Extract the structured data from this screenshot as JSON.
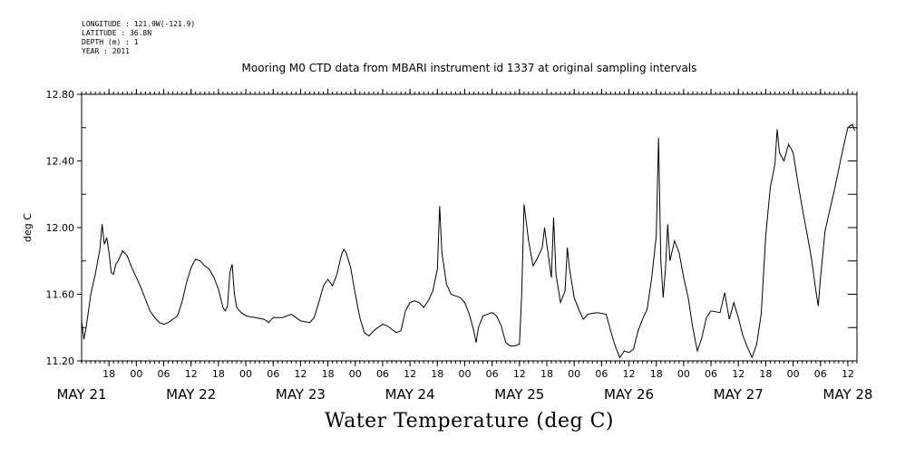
{
  "metadata": {
    "longitude": "LONGITUDE : 121.9W(-121.9)",
    "latitude": "LATITUDE : 36.8N",
    "depth": "DEPTH (m) : 1",
    "year": "YEAR : 2011"
  },
  "chart_data": {
    "type": "line",
    "title": "Mooring M0 CTD data from MBARI instrument id 1337 at original sampling intervals",
    "xlabel": "Water Temperature (deg C)",
    "ylabel": "deg C",
    "ylim": [
      11.2,
      12.8
    ],
    "y_ticks": [
      "11.20",
      "11.60",
      "12.00",
      "12.40",
      "12.80"
    ],
    "y_minor_ticks": [
      11.4,
      11.8,
      12.2,
      12.6
    ],
    "xlim": [
      "2011-05-21 12:00",
      "2011-05-28 14:00"
    ],
    "hour_ticks": [
      {
        "t": "2011-05-21 18:00",
        "label": "18"
      },
      {
        "t": "2011-05-22 00:00",
        "label": "00"
      },
      {
        "t": "2011-05-22 06:00",
        "label": "06"
      },
      {
        "t": "2011-05-22 12:00",
        "label": "12"
      },
      {
        "t": "2011-05-22 18:00",
        "label": "18"
      },
      {
        "t": "2011-05-23 00:00",
        "label": "00"
      },
      {
        "t": "2011-05-23 06:00",
        "label": "06"
      },
      {
        "t": "2011-05-23 12:00",
        "label": "12"
      },
      {
        "t": "2011-05-23 18:00",
        "label": "18"
      },
      {
        "t": "2011-05-24 00:00",
        "label": "00"
      },
      {
        "t": "2011-05-24 06:00",
        "label": "06"
      },
      {
        "t": "2011-05-24 12:00",
        "label": "12"
      },
      {
        "t": "2011-05-24 18:00",
        "label": "18"
      },
      {
        "t": "2011-05-25 00:00",
        "label": "00"
      },
      {
        "t": "2011-05-25 06:00",
        "label": "06"
      },
      {
        "t": "2011-05-25 12:00",
        "label": "12"
      },
      {
        "t": "2011-05-25 18:00",
        "label": "18"
      },
      {
        "t": "2011-05-26 00:00",
        "label": "00"
      },
      {
        "t": "2011-05-26 06:00",
        "label": "06"
      },
      {
        "t": "2011-05-26 12:00",
        "label": "12"
      },
      {
        "t": "2011-05-26 18:00",
        "label": "18"
      },
      {
        "t": "2011-05-27 00:00",
        "label": "00"
      },
      {
        "t": "2011-05-27 06:00",
        "label": "06"
      },
      {
        "t": "2011-05-27 12:00",
        "label": "12"
      },
      {
        "t": "2011-05-27 18:00",
        "label": "18"
      },
      {
        "t": "2011-05-28 00:00",
        "label": "00"
      },
      {
        "t": "2011-05-28 06:00",
        "label": "06"
      },
      {
        "t": "2011-05-28 12:00",
        "label": "12"
      }
    ],
    "day_labels": [
      {
        "t": "2011-05-21 12:00",
        "label": "MAY 21"
      },
      {
        "t": "2011-05-22 12:00",
        "label": "MAY 22"
      },
      {
        "t": "2011-05-23 12:00",
        "label": "MAY 23"
      },
      {
        "t": "2011-05-24 12:00",
        "label": "MAY 24"
      },
      {
        "t": "2011-05-25 12:00",
        "label": "MAY 25"
      },
      {
        "t": "2011-05-26 12:00",
        "label": "MAY 26"
      },
      {
        "t": "2011-05-27 12:00",
        "label": "MAY 27"
      },
      {
        "t": "2011-05-28 12:00",
        "label": "MAY 28"
      }
    ],
    "series": [
      {
        "color": "#000000",
        "points": [
          [
            "2011-05-21 12:00",
            11.44
          ],
          [
            "2011-05-21 12:30",
            11.33
          ],
          [
            "2011-05-21 13:00",
            11.4
          ],
          [
            "2011-05-21 14:00",
            11.6
          ],
          [
            "2011-05-21 15:00",
            11.72
          ],
          [
            "2011-05-21 16:00",
            11.87
          ],
          [
            "2011-05-21 16:30",
            12.02
          ],
          [
            "2011-05-21 17:00",
            11.9
          ],
          [
            "2011-05-21 17:30",
            11.94
          ],
          [
            "2011-05-21 18:00",
            11.85
          ],
          [
            "2011-05-21 18:30",
            11.73
          ],
          [
            "2011-05-21 19:00",
            11.72
          ],
          [
            "2011-05-21 19:30",
            11.78
          ],
          [
            "2011-05-21 20:00",
            11.8
          ],
          [
            "2011-05-21 21:00",
            11.86
          ],
          [
            "2011-05-21 22:00",
            11.83
          ],
          [
            "2011-05-21 23:00",
            11.76
          ],
          [
            "2011-05-22 00:00",
            11.7
          ],
          [
            "2011-05-22 01:00",
            11.64
          ],
          [
            "2011-05-22 02:00",
            11.57
          ],
          [
            "2011-05-22 03:00",
            11.5
          ],
          [
            "2011-05-22 04:00",
            11.46
          ],
          [
            "2011-05-22 05:00",
            11.43
          ],
          [
            "2011-05-22 06:00",
            11.42
          ],
          [
            "2011-05-22 07:00",
            11.43
          ],
          [
            "2011-05-22 08:00",
            11.45
          ],
          [
            "2011-05-22 09:00",
            11.47
          ],
          [
            "2011-05-22 10:00",
            11.55
          ],
          [
            "2011-05-22 11:00",
            11.67
          ],
          [
            "2011-05-22 12:00",
            11.76
          ],
          [
            "2011-05-22 13:00",
            11.81
          ],
          [
            "2011-05-22 14:00",
            11.8
          ],
          [
            "2011-05-22 15:00",
            11.77
          ],
          [
            "2011-05-22 16:00",
            11.75
          ],
          [
            "2011-05-22 17:00",
            11.7
          ],
          [
            "2011-05-22 18:00",
            11.63
          ],
          [
            "2011-05-22 19:00",
            11.52
          ],
          [
            "2011-05-22 19:30",
            11.5
          ],
          [
            "2011-05-22 20:00",
            11.53
          ],
          [
            "2011-05-22 20:30",
            11.73
          ],
          [
            "2011-05-22 21:00",
            11.78
          ],
          [
            "2011-05-22 21:30",
            11.6
          ],
          [
            "2011-05-22 22:00",
            11.52
          ],
          [
            "2011-05-22 23:00",
            11.49
          ],
          [
            "2011-05-23 00:00",
            11.47
          ],
          [
            "2011-05-23 02:00",
            11.46
          ],
          [
            "2011-05-23 04:00",
            11.45
          ],
          [
            "2011-05-23 05:00",
            11.43
          ],
          [
            "2011-05-23 06:00",
            11.46
          ],
          [
            "2011-05-23 08:00",
            11.46
          ],
          [
            "2011-05-23 10:00",
            11.48
          ],
          [
            "2011-05-23 11:00",
            11.46
          ],
          [
            "2011-05-23 12:00",
            11.44
          ],
          [
            "2011-05-23 14:00",
            11.43
          ],
          [
            "2011-05-23 15:00",
            11.46
          ],
          [
            "2011-05-23 16:00",
            11.55
          ],
          [
            "2011-05-23 17:00",
            11.65
          ],
          [
            "2011-05-23 18:00",
            11.69
          ],
          [
            "2011-05-23 19:00",
            11.65
          ],
          [
            "2011-05-23 20:00",
            11.72
          ],
          [
            "2011-05-23 21:00",
            11.84
          ],
          [
            "2011-05-23 21:30",
            11.87
          ],
          [
            "2011-05-23 22:00",
            11.85
          ],
          [
            "2011-05-23 23:00",
            11.76
          ],
          [
            "2011-05-24 00:00",
            11.6
          ],
          [
            "2011-05-24 01:00",
            11.46
          ],
          [
            "2011-05-24 02:00",
            11.37
          ],
          [
            "2011-05-24 03:00",
            11.35
          ],
          [
            "2011-05-24 04:00",
            11.38
          ],
          [
            "2011-05-24 05:00",
            11.4
          ],
          [
            "2011-05-24 06:00",
            11.42
          ],
          [
            "2011-05-24 07:00",
            11.41
          ],
          [
            "2011-05-24 08:00",
            11.39
          ],
          [
            "2011-05-24 09:00",
            11.37
          ],
          [
            "2011-05-24 10:00",
            11.38
          ],
          [
            "2011-05-24 11:00",
            11.5
          ],
          [
            "2011-05-24 12:00",
            11.55
          ],
          [
            "2011-05-24 13:00",
            11.56
          ],
          [
            "2011-05-24 14:00",
            11.55
          ],
          [
            "2011-05-24 15:00",
            11.52
          ],
          [
            "2011-05-24 16:00",
            11.56
          ],
          [
            "2011-05-24 17:00",
            11.62
          ],
          [
            "2011-05-24 18:00",
            11.75
          ],
          [
            "2011-05-24 18:30",
            12.13
          ],
          [
            "2011-05-24 19:00",
            11.85
          ],
          [
            "2011-05-24 20:00",
            11.66
          ],
          [
            "2011-05-24 21:00",
            11.6
          ],
          [
            "2011-05-24 22:00",
            11.59
          ],
          [
            "2011-05-24 23:00",
            11.58
          ],
          [
            "2011-05-25 00:00",
            11.55
          ],
          [
            "2011-05-25 01:00",
            11.48
          ],
          [
            "2011-05-25 02:00",
            11.38
          ],
          [
            "2011-05-25 02:30",
            11.31
          ],
          [
            "2011-05-25 03:00",
            11.4
          ],
          [
            "2011-05-25 04:00",
            11.47
          ],
          [
            "2011-05-25 06:00",
            11.49
          ],
          [
            "2011-05-25 07:00",
            11.47
          ],
          [
            "2011-05-25 08:00",
            11.41
          ],
          [
            "2011-05-25 09:00",
            11.31
          ],
          [
            "2011-05-25 10:00",
            11.29
          ],
          [
            "2011-05-25 11:00",
            11.29
          ],
          [
            "2011-05-25 12:00",
            11.3
          ],
          [
            "2011-05-25 12:30",
            11.6
          ],
          [
            "2011-05-25 13:00",
            12.14
          ],
          [
            "2011-05-25 14:00",
            11.92
          ],
          [
            "2011-05-25 15:00",
            11.77
          ],
          [
            "2011-05-25 16:00",
            11.82
          ],
          [
            "2011-05-25 17:00",
            11.88
          ],
          [
            "2011-05-25 17:30",
            12.0
          ],
          [
            "2011-05-25 18:00",
            11.9
          ],
          [
            "2011-05-25 19:00",
            11.7
          ],
          [
            "2011-05-25 19:30",
            12.06
          ],
          [
            "2011-05-25 20:00",
            11.72
          ],
          [
            "2011-05-25 21:00",
            11.55
          ],
          [
            "2011-05-25 22:00",
            11.62
          ],
          [
            "2011-05-25 22:30",
            11.88
          ],
          [
            "2011-05-25 23:00",
            11.75
          ],
          [
            "2011-05-26 00:00",
            11.58
          ],
          [
            "2011-05-26 01:00",
            11.51
          ],
          [
            "2011-05-26 02:00",
            11.45
          ],
          [
            "2011-05-26 03:00",
            11.48
          ],
          [
            "2011-05-26 05:00",
            11.49
          ],
          [
            "2011-05-26 07:00",
            11.48
          ],
          [
            "2011-05-26 08:00",
            11.38
          ],
          [
            "2011-05-26 09:00",
            11.29
          ],
          [
            "2011-05-26 10:00",
            11.22
          ],
          [
            "2011-05-26 11:00",
            11.26
          ],
          [
            "2011-05-26 12:00",
            11.25
          ],
          [
            "2011-05-26 13:00",
            11.27
          ],
          [
            "2011-05-26 14:00",
            11.38
          ],
          [
            "2011-05-26 15:00",
            11.45
          ],
          [
            "2011-05-26 16:00",
            11.51
          ],
          [
            "2011-05-26 17:00",
            11.7
          ],
          [
            "2011-05-26 18:00",
            11.95
          ],
          [
            "2011-05-26 18:30",
            12.54
          ],
          [
            "2011-05-26 19:00",
            11.8
          ],
          [
            "2011-05-26 19:30",
            11.58
          ],
          [
            "2011-05-26 20:00",
            11.75
          ],
          [
            "2011-05-26 20:30",
            12.02
          ],
          [
            "2011-05-26 21:00",
            11.8
          ],
          [
            "2011-05-26 22:00",
            11.92
          ],
          [
            "2011-05-26 23:00",
            11.85
          ],
          [
            "2011-05-27 00:00",
            11.7
          ],
          [
            "2011-05-27 01:00",
            11.58
          ],
          [
            "2011-05-27 02:00",
            11.4
          ],
          [
            "2011-05-27 03:00",
            11.26
          ],
          [
            "2011-05-27 04:00",
            11.34
          ],
          [
            "2011-05-27 05:00",
            11.46
          ],
          [
            "2011-05-27 06:00",
            11.5
          ],
          [
            "2011-05-27 08:00",
            11.49
          ],
          [
            "2011-05-27 09:00",
            11.61
          ],
          [
            "2011-05-27 10:00",
            11.45
          ],
          [
            "2011-05-27 11:00",
            11.55
          ],
          [
            "2011-05-27 12:00",
            11.46
          ],
          [
            "2011-05-27 13:00",
            11.35
          ],
          [
            "2011-05-27 14:00",
            11.28
          ],
          [
            "2011-05-27 15:00",
            11.22
          ],
          [
            "2011-05-27 16:00",
            11.3
          ],
          [
            "2011-05-27 17:00",
            11.48
          ],
          [
            "2011-05-27 18:00",
            11.95
          ],
          [
            "2011-05-27 19:00",
            12.24
          ],
          [
            "2011-05-27 20:00",
            12.38
          ],
          [
            "2011-05-27 20:30",
            12.59
          ],
          [
            "2011-05-27 21:00",
            12.45
          ],
          [
            "2011-05-27 22:00",
            12.4
          ],
          [
            "2011-05-27 23:00",
            12.5
          ],
          [
            "2011-05-28 00:00",
            12.45
          ],
          [
            "2011-05-28 01:00",
            12.28
          ],
          [
            "2011-05-28 02:00",
            12.12
          ],
          [
            "2011-05-28 03:00",
            11.97
          ],
          [
            "2011-05-28 04:00",
            11.82
          ],
          [
            "2011-05-28 05:00",
            11.62
          ],
          [
            "2011-05-28 05:30",
            11.53
          ],
          [
            "2011-05-28 06:00",
            11.7
          ],
          [
            "2011-05-28 07:00",
            11.98
          ],
          [
            "2011-05-28 08:00",
            12.1
          ],
          [
            "2011-05-28 09:00",
            12.22
          ],
          [
            "2011-05-28 10:00",
            12.35
          ],
          [
            "2011-05-28 11:00",
            12.48
          ],
          [
            "2011-05-28 12:00",
            12.6
          ],
          [
            "2011-05-28 13:00",
            12.62
          ],
          [
            "2011-05-28 13:30",
            12.58
          ]
        ]
      }
    ]
  }
}
